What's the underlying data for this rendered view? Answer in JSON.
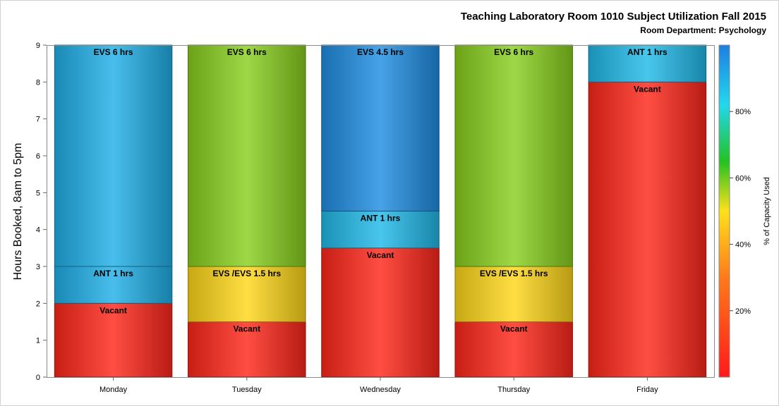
{
  "chart_data": {
    "type": "bar",
    "stacked": true,
    "title": "Teaching Laboratory Room 1010 Subject Utilization Fall 2015",
    "subtitle": "Room Department:  Psychology",
    "ylabel": "Hours Booked, 8am to 5pm",
    "xlabel": "",
    "ylim": [
      0,
      9
    ],
    "yticks": [
      "0",
      "1",
      "2",
      "3",
      "4",
      "5",
      "6",
      "7",
      "8",
      "9"
    ],
    "categories": [
      "Monday",
      "Tuesday",
      "Wednesday",
      "Thursday",
      "Friday"
    ],
    "stacks": [
      [
        {
          "label": "Vacant",
          "hours": 2,
          "capacity": 0.04
        },
        {
          "label": "ANT 1 hrs",
          "hours": 1,
          "capacity": 0.9
        },
        {
          "label": "EVS 6 hrs",
          "hours": 6,
          "capacity": 0.9
        }
      ],
      [
        {
          "label": "Vacant",
          "hours": 1.5,
          "capacity": 0.04
        },
        {
          "label": "EVS /EVS 1.5 hrs",
          "hours": 1.5,
          "capacity": 0.48
        },
        {
          "label": "EVS 6 hrs",
          "hours": 6,
          "capacity": 0.58
        }
      ],
      [
        {
          "label": "Vacant",
          "hours": 3.5,
          "capacity": 0.04
        },
        {
          "label": "ANT 1 hrs",
          "hours": 1,
          "capacity": 0.88
        },
        {
          "label": "EVS 4.5 hrs",
          "hours": 4.5,
          "capacity": 0.97
        }
      ],
      [
        {
          "label": "Vacant",
          "hours": 1.5,
          "capacity": 0.04
        },
        {
          "label": "EVS /EVS 1.5 hrs",
          "hours": 1.5,
          "capacity": 0.48
        },
        {
          "label": "EVS 6 hrs",
          "hours": 6,
          "capacity": 0.58
        }
      ],
      [
        {
          "label": "Vacant",
          "hours": 8,
          "capacity": 0.04
        },
        {
          "label": "ANT 1 hrs",
          "hours": 1,
          "capacity": 0.88
        }
      ]
    ],
    "colorbar": {
      "label": "% of Capacity Used",
      "ticks": [
        {
          "value": 0.2,
          "label": "20%"
        },
        {
          "value": 0.4,
          "label": "40%"
        },
        {
          "value": 0.6,
          "label": "60%"
        },
        {
          "value": 0.8,
          "label": "80%"
        }
      ],
      "range": [
        0,
        1
      ],
      "stops": [
        {
          "value": 0.0,
          "color": "#ff1a1a"
        },
        {
          "value": 0.3,
          "color": "#ff7a1a"
        },
        {
          "value": 0.5,
          "color": "#ffe11a"
        },
        {
          "value": 0.65,
          "color": "#22c222"
        },
        {
          "value": 0.82,
          "color": "#22d8ee"
        },
        {
          "value": 1.0,
          "color": "#1e7ee0"
        }
      ]
    },
    "grid": false,
    "legend": "right"
  }
}
